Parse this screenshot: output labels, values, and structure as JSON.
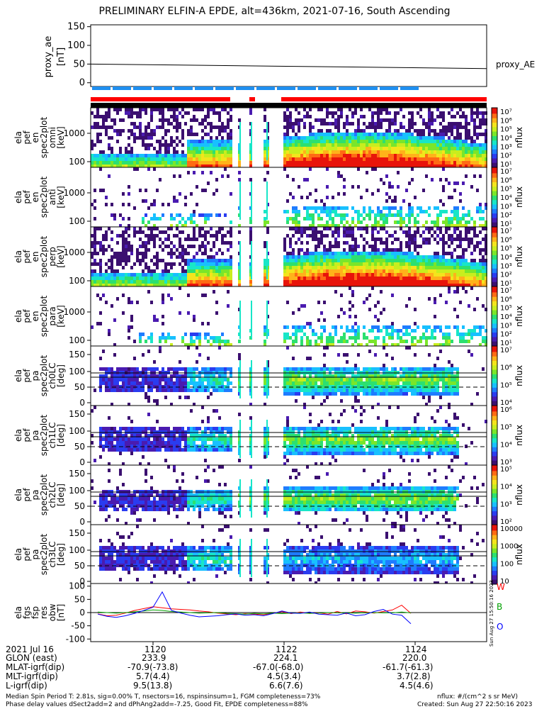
{
  "title": "PRELIMINARY ELFIN-A EPDE, alt=436km, 2021-07-16, South Ascending",
  "chart_data": [
    {
      "type": "line",
      "panel": "proxy_ae",
      "ylabel_lines": [
        "proxy_ae",
        "[nT]"
      ],
      "ylim": [
        -10,
        155
      ],
      "yticks": [
        "150",
        "100",
        "50",
        "0"
      ],
      "legend": "proxy_AE",
      "x": [
        "11:18.0",
        "11:25.6"
      ],
      "series": [
        {
          "name": "proxy_AE",
          "values": [
            50,
            38
          ]
        }
      ]
    },
    {
      "type": "heatmap",
      "panels": [
        {
          "ylabel_lines": [
            "ela",
            "pef",
            "en",
            "spec2plot",
            "omni",
            "[keV]"
          ],
          "yticks": [
            "1000",
            "100"
          ],
          "cb_ticks": [
            "10⁷",
            "10⁶",
            "10⁵",
            "10⁴",
            "10³",
            "10²",
            "10¹"
          ],
          "cb_label": "nflux"
        },
        {
          "ylabel_lines": [
            "ela",
            "pef",
            "en",
            "spec2plot",
            "anti",
            "[keV]"
          ],
          "yticks": [
            "1000",
            "100"
          ],
          "cb_ticks": [
            "10⁷",
            "10⁶",
            "10⁵",
            "10⁴",
            "10³",
            "10²",
            "10¹"
          ],
          "cb_label": "nflux"
        },
        {
          "ylabel_lines": [
            "ela",
            "pef",
            "en",
            "spec2plot",
            "perp",
            "[keV]"
          ],
          "yticks": [
            "1000",
            "100"
          ],
          "cb_ticks": [
            "10⁷",
            "10⁶",
            "10⁵",
            "10⁴",
            "10³",
            "10²",
            "10¹"
          ],
          "cb_label": "nflux"
        },
        {
          "ylabel_lines": [
            "ela",
            "pef",
            "en",
            "spec2plot",
            "para",
            "[keV]"
          ],
          "yticks": [
            "1000",
            "100"
          ],
          "cb_ticks": [
            "10⁷",
            "10⁶",
            "10⁵",
            "10⁴",
            "10³",
            "10²",
            "10¹"
          ],
          "cb_label": "nflux"
        },
        {
          "ylabel_lines": [
            "ela",
            "pef",
            "pa",
            "spec2plot",
            "ch0LC",
            "[deg]"
          ],
          "yticks": [
            "150",
            "100",
            "50",
            "0"
          ],
          "cb_ticks": [
            "10⁷",
            "10⁶",
            "10⁵",
            "10⁴"
          ],
          "cb_label": "nflux"
        },
        {
          "ylabel_lines": [
            "ela",
            "pef",
            "pa",
            "spec2plot",
            "ch1LC",
            "[deg]"
          ],
          "yticks": [
            "150",
            "100",
            "50",
            "0"
          ],
          "cb_ticks": [
            "10⁶",
            "10⁵",
            "10⁴",
            "10³"
          ],
          "cb_label": "nflux"
        },
        {
          "ylabel_lines": [
            "ela",
            "pef",
            "pa",
            "spec2plot",
            "ch2LC",
            "[deg]"
          ],
          "yticks": [
            "150",
            "100",
            "50",
            "0"
          ],
          "cb_ticks": [
            "10⁵",
            "10⁴",
            "10³",
            "10²"
          ],
          "cb_label": "nflux"
        },
        {
          "ylabel_lines": [
            "ela",
            "pef",
            "pa",
            "spec2plot",
            "ch3LC",
            "[deg]"
          ],
          "yticks": [
            "150",
            "100",
            "50",
            "0"
          ],
          "cb_ticks": [
            "10000",
            "1000",
            "100",
            "10"
          ],
          "cb_label": "nflux"
        }
      ]
    },
    {
      "type": "line",
      "panel": "fgs",
      "ylabel_lines": [
        "ela",
        "fgs",
        "fsp",
        "res",
        "obw",
        "[nT]"
      ],
      "ylim": [
        -110,
        110
      ],
      "yticks": [
        "100",
        "50",
        "0",
        "-50",
        "-100"
      ],
      "x": [
        0,
        1,
        2,
        3,
        4,
        5,
        6,
        7,
        8,
        9,
        10,
        11,
        12,
        13,
        14,
        15,
        16,
        17,
        18,
        19,
        20,
        21,
        22,
        23,
        24,
        25,
        26,
        27,
        28,
        29,
        30,
        31,
        32,
        33,
        34
      ],
      "series": [
        {
          "name": "W",
          "color": "#ff0000",
          "values": [
            -5,
            -12,
            -10,
            -2,
            8,
            15,
            22,
            18,
            14,
            12,
            10,
            6,
            3,
            -2,
            -5,
            -8,
            -4,
            -6,
            -8,
            -3,
            4,
            -4,
            2,
            -3,
            -1,
            -6,
            4,
            -5,
            6,
            3,
            -2,
            4,
            10,
            28,
            -3
          ]
        },
        {
          "name": "B",
          "color": "#00a000",
          "values": [
            2,
            0,
            -2,
            0,
            3,
            6,
            10,
            8,
            4,
            2,
            0,
            -2,
            -1,
            0,
            -3,
            -4,
            -6,
            -3,
            -5,
            -2,
            -4,
            -2,
            -1,
            -3,
            -2,
            0,
            -1,
            -1,
            -2,
            -1,
            0,
            -1,
            -1,
            2,
            -1
          ]
        },
        {
          "name": "O",
          "color": "#0000ff",
          "values": [
            -6,
            -14,
            -18,
            -12,
            -3,
            8,
            20,
            78,
            8,
            -2,
            -10,
            -16,
            -14,
            -12,
            -8,
            -5,
            -10,
            -8,
            -12,
            -4,
            6,
            -2,
            -3,
            2,
            -6,
            -8,
            -10,
            -2,
            -12,
            -8,
            4,
            12,
            -6,
            -10,
            -42
          ]
        }
      ],
      "legend": [
        "W",
        "B",
        "O"
      ]
    }
  ],
  "xaxis": {
    "ticks": [
      "1120",
      "1122",
      "1124"
    ]
  },
  "ephemeris": {
    "row_labels": [
      "2021 Jul 16",
      "GLON (east)",
      "MLAT-igrf(dip)",
      "MLT-igrf(dip)",
      "L-igrf(dip)"
    ],
    "col_1120": [
      "1120",
      "233.9",
      "-70.9(-73.8)",
      "5.7(4.4)",
      "9.5(13.8)"
    ],
    "col_1122": [
      "1122",
      "224.1",
      "-67.0(-68.0)",
      "4.5(3.4)",
      "6.6(7.6)"
    ],
    "col_1124": [
      "1124",
      "220.0",
      "-61.7(-61.3)",
      "3.7(2.8)",
      "4.5(4.6)"
    ]
  },
  "footer": {
    "line1": "Median Spin Period T: 2.81s, sig=0.00% T, nsectors=16, nspinsinsum=1, FGM completeness=73%",
    "line2": "Phase delay values dSect2add=2 and dPhAng2add=-7.25, Good Fit, EPDE completeness=88%",
    "units": "nflux: #/(cm^2 s sr MeV)",
    "created": "Created: Sun Aug 27 22:50:16 2023",
    "vertical_stamp": "Sun Aug 27 15:50:16 2023"
  },
  "colors": {
    "red_bar": "#ff0000",
    "blue_bar": "#1f8ff0",
    "black_bar": "#000000"
  }
}
